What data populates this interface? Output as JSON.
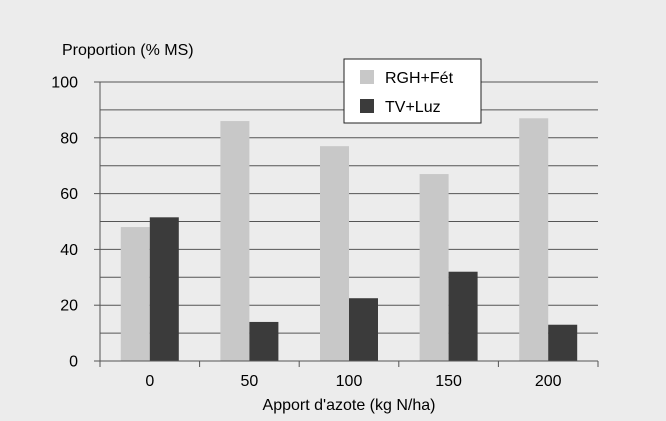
{
  "chart_data": {
    "type": "bar",
    "ylabel": "Proportion (% MS)",
    "xlabel": "Apport d'azote (kg N/ha)",
    "categories": [
      "0",
      "50",
      "100",
      "150",
      "200"
    ],
    "series": [
      {
        "name": "RGH+Fét",
        "values": [
          48,
          86,
          77,
          67,
          87
        ],
        "color": "#c8c8c8"
      },
      {
        "name": "TV+Luz",
        "values": [
          51.5,
          14,
          22.5,
          32,
          13
        ],
        "color": "#3b3b3b"
      }
    ],
    "ylim": [
      0,
      100
    ],
    "yticks": [
      0,
      20,
      40,
      60,
      80,
      100
    ],
    "grid": true,
    "legend_position": "top-right",
    "background": "#ececec",
    "axis_color": "#555555"
  }
}
